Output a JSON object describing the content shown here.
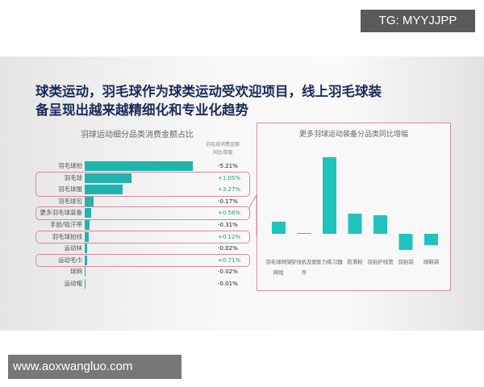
{
  "watermark_top": "TG: MYYJJPP",
  "watermark_bottom": "www.aoxwangluo.com",
  "title_line1": "球类运动，羽毛球作为球类运动受欢迎项目，线上羽毛球装",
  "title_line2": "备呈现出越来越精细化和专业化趋势",
  "chart_data": [
    {
      "type": "bar",
      "orientation": "horizontal",
      "title": "羽球运动细分品类消费金额占比",
      "column_header": "羽毛球消费金额同比增幅",
      "categories": [
        "羽毛球拍",
        "羽毛球",
        "羽毛球服",
        "羽毛球包",
        "更多羽毛球装备",
        "手胶/吸汗带",
        "羽毛球拍线",
        "运动袜",
        "运动毛巾",
        "球网",
        "运动帽"
      ],
      "values": [
        100,
        43,
        35,
        8,
        6,
        4.5,
        4,
        2,
        2,
        0.7,
        0.3
      ],
      "yoy_labels": [
        "-5.21%",
        "+1.05%",
        "+3.27%",
        "-0.17%",
        "+0.58%",
        "-0.31%",
        "+0.12%",
        "-0.02%",
        "+0.71%",
        "-0.02%",
        "-0.01%"
      ],
      "highlighted": [
        "羽毛球",
        "羽毛球服",
        "更多羽毛球装备",
        "羽毛球拍线",
        "运动毛巾"
      ],
      "colors": {
        "bar": "#1fb5ae",
        "positive": "#2e9a6e",
        "negative": "#222222",
        "highlight_border": "#d98a97"
      }
    },
    {
      "type": "bar",
      "title": "更多羽球运动装备分品类同比增幅",
      "categories": [
        "羽毛球网架网柱",
        "穿线机及配件",
        "发力练习器",
        "防滑粉",
        "羽拍护线管",
        "羽拍袋",
        "球鞋袋"
      ],
      "values": [
        15,
        1,
        95,
        25,
        23,
        -20,
        -14
      ],
      "colors": {
        "bar": "#1fc2bd"
      }
    }
  ]
}
